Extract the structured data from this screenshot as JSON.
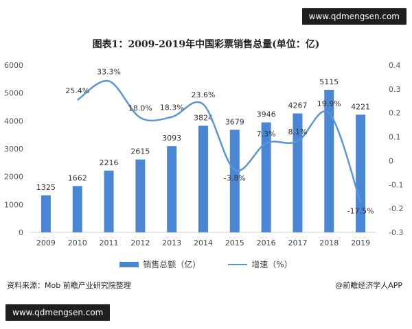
{
  "watermark_top": "www.qdmengsen.com",
  "watermark_bottom": "www.qdmengsen.com",
  "source_text": "资料来源：Mob 前瞻产业研究院整理",
  "brand_text": "@前瞻经济学人APP",
  "colors": {
    "bar": "#4a86d4",
    "line": "#5a96d6"
  },
  "chart_data": {
    "type": "bar",
    "title": "图表1：2009-2019年中国彩票销售总量(单位：亿)",
    "categories": [
      "2009",
      "2010",
      "2011",
      "2012",
      "2013",
      "2014",
      "2015",
      "2016",
      "2017",
      "2018",
      "2019"
    ],
    "series": [
      {
        "name": "销售总额（亿）",
        "type": "bar",
        "values": [
          1325,
          1662,
          2216,
          2615,
          3093,
          3824,
          3679,
          3946,
          4267,
          5115,
          4221
        ],
        "labels": [
          "1325",
          "1662",
          "2216",
          "2615",
          "3093",
          "3824",
          "3679",
          "3946",
          "4267",
          "5115",
          "4221"
        ]
      },
      {
        "name": "增速（%）",
        "type": "line",
        "axis": "right",
        "values": [
          null,
          0.254,
          0.333,
          0.18,
          0.183,
          0.236,
          -0.038,
          0.073,
          0.081,
          0.199,
          -0.175
        ],
        "labels": [
          "",
          "25.4%",
          "33.3%",
          "18.0%",
          "18.3%",
          "23.6%",
          "-3.8%",
          "7.3%",
          "8.1%",
          "19.9%",
          "-17.5%"
        ]
      }
    ],
    "ylim": [
      0,
      6000
    ],
    "yticks": [
      "0",
      "1000",
      "2000",
      "3000",
      "4000",
      "5000",
      "6000"
    ],
    "y2lim": [
      -0.3,
      0.4
    ],
    "y2ticks": [
      "0.4",
      "0.3",
      "0.2",
      "0.1",
      "0",
      "-0.1",
      "-0.2",
      "-0.3"
    ],
    "legend_position": "bottom",
    "grid": false
  }
}
